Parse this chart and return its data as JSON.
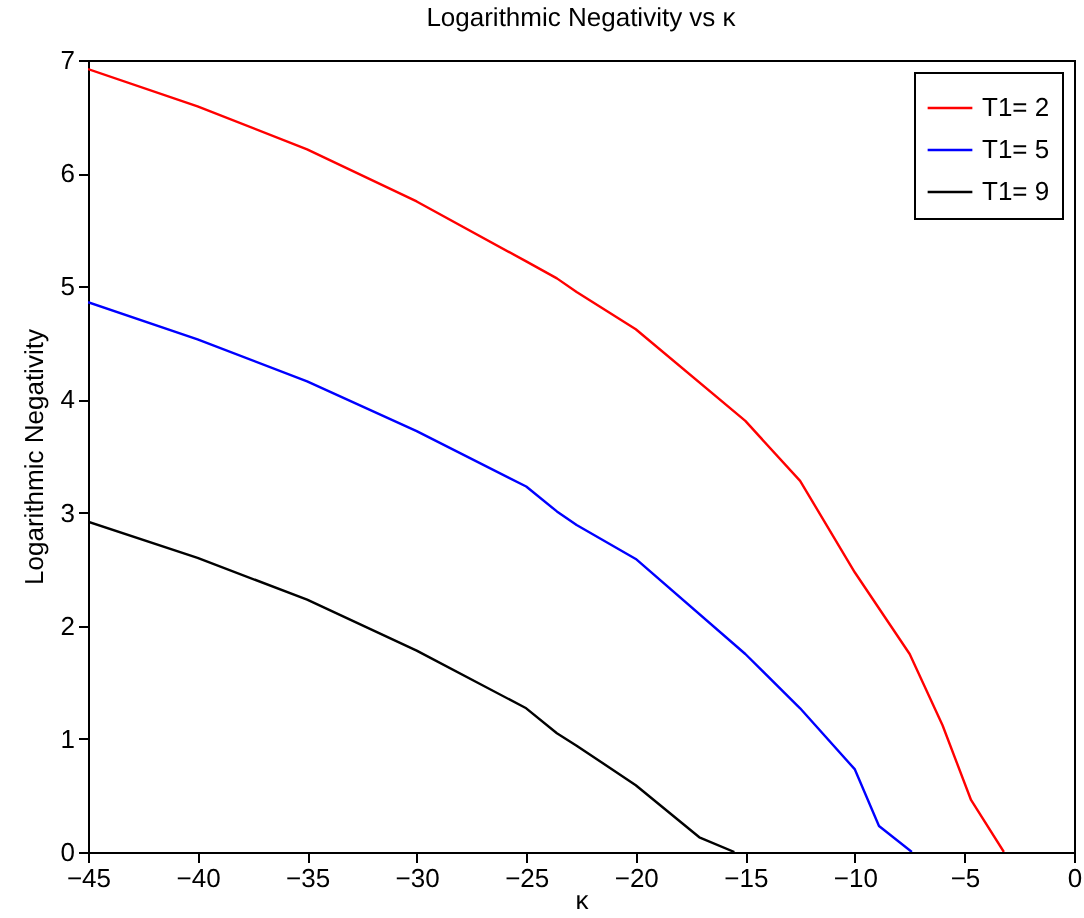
{
  "chart_data": {
    "type": "line",
    "title": "Logarithmic Negativity vs κ",
    "xlabel": "κ",
    "ylabel": "Logarithmic Negativity",
    "series": [
      {
        "name": "T1= 2",
        "color": "#ff0000",
        "x": [
          -45,
          -40,
          -35,
          -30,
          -25,
          -23.6,
          -22.7,
          -20,
          -15,
          -12.5,
          -10,
          -7.5,
          -6,
          -4.7,
          -3.2
        ],
        "values": [
          6.92,
          6.59,
          6.21,
          5.75,
          5.22,
          5.07,
          4.95,
          4.62,
          3.81,
          3.28,
          2.47,
          1.75,
          1.12,
          0.46,
          0
        ]
      },
      {
        "name": "T1= 5",
        "color": "#0000ff",
        "x": [
          -45,
          -40,
          -35,
          -30,
          -25,
          -23.6,
          -22.7,
          -20,
          -15,
          -12.5,
          -10,
          -8.9,
          -7.4
        ],
        "values": [
          4.86,
          4.53,
          4.16,
          3.72,
          3.23,
          3.01,
          2.89,
          2.59,
          1.75,
          1.27,
          0.73,
          0.23,
          0
        ]
      },
      {
        "name": "T1= 9",
        "color": "#000000",
        "x": [
          -45,
          -40,
          -35,
          -30,
          -25,
          -23.6,
          -22.7,
          -20,
          -17.1,
          -15.5
        ],
        "values": [
          2.92,
          2.6,
          2.23,
          1.78,
          1.27,
          1.05,
          0.94,
          0.59,
          0.13,
          0
        ]
      }
    ],
    "xlim": [
      -45,
      0
    ],
    "xticks": [
      -45,
      -40,
      -35,
      -30,
      -25,
      -20,
      -15,
      -10,
      -5,
      0
    ],
    "ylim": [
      0,
      7
    ],
    "yticks": [
      0,
      1,
      2,
      3,
      4,
      5,
      6,
      7
    ],
    "legend": "top right",
    "line_style": "solid"
  }
}
